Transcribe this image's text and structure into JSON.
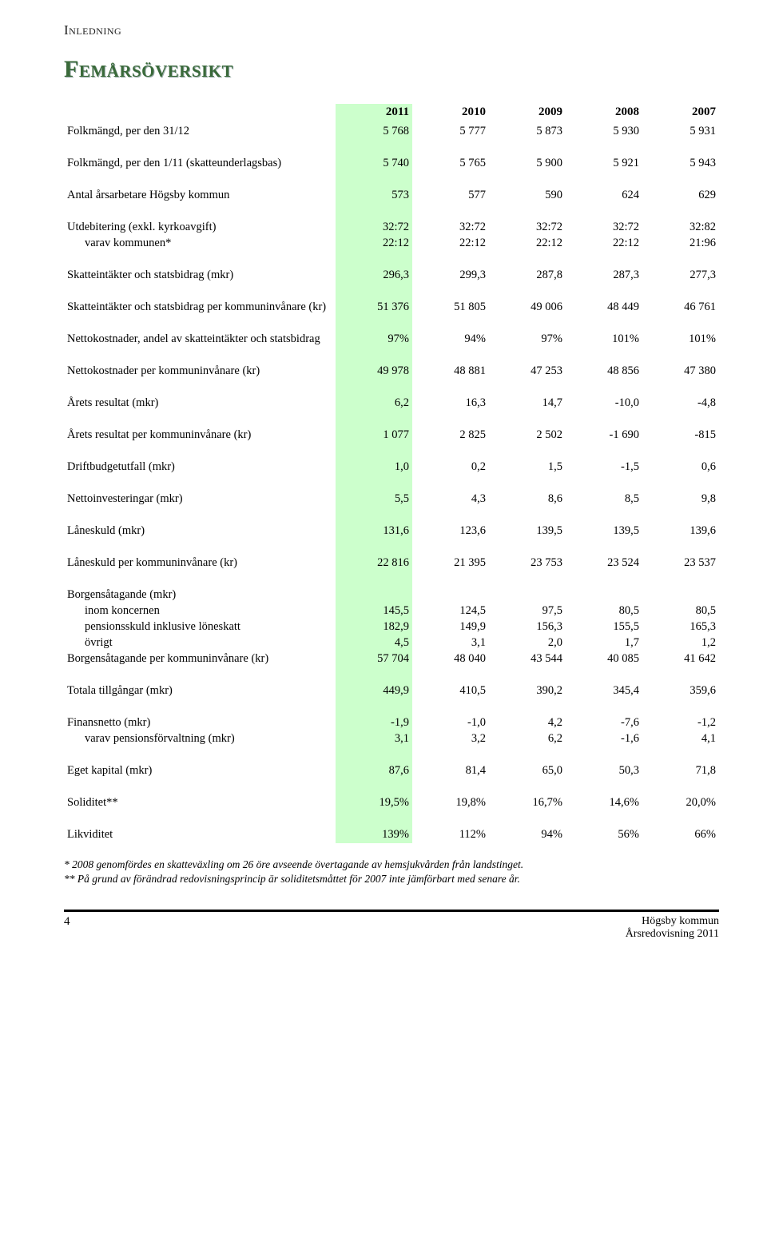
{
  "section_label": "Inledning",
  "title": "Femårsöversikt",
  "columns": [
    "2011",
    "2010",
    "2009",
    "2008",
    "2007"
  ],
  "highlight_col_index": 0,
  "highlight_color": "#ccffcc",
  "blocks": [
    {
      "rows": [
        {
          "label": "Folkmängd, per den 31/12",
          "vals": [
            "5 768",
            "5 777",
            "5 873",
            "5 930",
            "5 931"
          ]
        }
      ]
    },
    {
      "rows": [
        {
          "label": "Folkmängd, per den 1/11 (skatteunderlagsbas)",
          "vals": [
            "5 740",
            "5 765",
            "5 900",
            "5 921",
            "5 943"
          ]
        }
      ]
    },
    {
      "rows": [
        {
          "label": "Antal årsarbetare Högsby kommun",
          "vals": [
            "573",
            "577",
            "590",
            "624",
            "629"
          ]
        }
      ]
    },
    {
      "rows": [
        {
          "label": "Utdebitering (exkl. kyrkoavgift)",
          "vals": [
            "32:72",
            "32:72",
            "32:72",
            "32:72",
            "32:82"
          ]
        },
        {
          "label": "varav kommunen*",
          "indent": true,
          "vals": [
            "22:12",
            "22:12",
            "22:12",
            "22:12",
            "21:96"
          ]
        }
      ]
    },
    {
      "rows": [
        {
          "label": "Skatteintäkter och statsbidrag (mkr)",
          "vals": [
            "296,3",
            "299,3",
            "287,8",
            "287,3",
            "277,3"
          ]
        }
      ]
    },
    {
      "rows": [
        {
          "label": "Skatteintäkter och statsbidrag per kommuninvånare (kr)",
          "vals": [
            "51 376",
            "51 805",
            "49 006",
            "48 449",
            "46 761"
          ]
        }
      ]
    },
    {
      "rows": [
        {
          "label": "Nettokostnader, andel av skatteintäkter och statsbidrag",
          "vals": [
            "97%",
            "94%",
            "97%",
            "101%",
            "101%"
          ]
        }
      ]
    },
    {
      "rows": [
        {
          "label": "Nettokostnader per kommuninvånare (kr)",
          "vals": [
            "49 978",
            "48 881",
            "47 253",
            "48 856",
            "47 380"
          ]
        }
      ]
    },
    {
      "rows": [
        {
          "label": "Årets resultat (mkr)",
          "vals": [
            "6,2",
            "16,3",
            "14,7",
            "-10,0",
            "-4,8"
          ]
        }
      ]
    },
    {
      "rows": [
        {
          "label": "Årets resultat per kommuninvånare (kr)",
          "vals": [
            "1 077",
            "2 825",
            "2 502",
            "-1 690",
            "-815"
          ]
        }
      ]
    },
    {
      "rows": [
        {
          "label": "Driftbudgetutfall (mkr)",
          "vals": [
            "1,0",
            "0,2",
            "1,5",
            "-1,5",
            "0,6"
          ]
        }
      ]
    },
    {
      "rows": [
        {
          "label": "Nettoinvesteringar (mkr)",
          "vals": [
            "5,5",
            "4,3",
            "8,6",
            "8,5",
            "9,8"
          ]
        }
      ]
    },
    {
      "rows": [
        {
          "label": "Låneskuld (mkr)",
          "vals": [
            "131,6",
            "123,6",
            "139,5",
            "139,5",
            "139,6"
          ]
        }
      ]
    },
    {
      "rows": [
        {
          "label": "Låneskuld per kommuninvånare (kr)",
          "vals": [
            "22 816",
            "21 395",
            "23 753",
            "23 524",
            "23 537"
          ]
        }
      ]
    },
    {
      "rows": [
        {
          "label": "Borgensåtagande (mkr)",
          "vals": [
            "",
            "",
            "",
            "",
            ""
          ]
        },
        {
          "label": "inom koncernen",
          "indent": true,
          "vals": [
            "145,5",
            "124,5",
            "97,5",
            "80,5",
            "80,5"
          ]
        },
        {
          "label": "pensionsskuld inklusive löneskatt",
          "indent": true,
          "vals": [
            "182,9",
            "149,9",
            "156,3",
            "155,5",
            "165,3"
          ]
        },
        {
          "label": "övrigt",
          "indent": true,
          "vals": [
            "4,5",
            "3,1",
            "2,0",
            "1,7",
            "1,2"
          ]
        },
        {
          "label": "Borgensåtagande per kommuninvånare (kr)",
          "vals": [
            "57 704",
            "48 040",
            "43 544",
            "40 085",
            "41 642"
          ]
        }
      ]
    },
    {
      "rows": [
        {
          "label": "Totala tillgångar (mkr)",
          "vals": [
            "449,9",
            "410,5",
            "390,2",
            "345,4",
            "359,6"
          ]
        }
      ]
    },
    {
      "rows": [
        {
          "label": "Finansnetto (mkr)",
          "vals": [
            "-1,9",
            "-1,0",
            "4,2",
            "-7,6",
            "-1,2"
          ]
        },
        {
          "label": "varav pensionsförvaltning (mkr)",
          "indent": true,
          "vals": [
            "3,1",
            "3,2",
            "6,2",
            "-1,6",
            "4,1"
          ]
        }
      ]
    },
    {
      "rows": [
        {
          "label": "Eget kapital (mkr)",
          "vals": [
            "87,6",
            "81,4",
            "65,0",
            "50,3",
            "71,8"
          ]
        }
      ]
    },
    {
      "rows": [
        {
          "label": "Soliditet**",
          "vals": [
            "19,5%",
            "19,8%",
            "16,7%",
            "14,6%",
            "20,0%"
          ]
        }
      ]
    },
    {
      "rows": [
        {
          "label": "Likviditet",
          "vals": [
            "139%",
            "112%",
            "94%",
            "56%",
            "66%"
          ]
        }
      ]
    }
  ],
  "footnotes": [
    "* 2008 genomfördes en skatteväxling om 26 öre avseende övertagande av hemsjukvården från landstinget.",
    "** På grund av förändrad redovisningsprincip är soliditetsmåttet för 2007 inte jämförbart med senare år."
  ],
  "footer": {
    "page_number": "4",
    "right_line1": "Högsby kommun",
    "right_line2": "Årsredovisning 2011"
  }
}
